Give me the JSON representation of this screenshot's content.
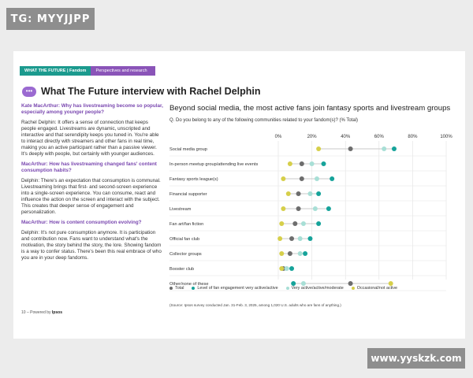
{
  "watermarks": {
    "top": "TG: MYYJJPP",
    "bottom": "www.yyskzk.com"
  },
  "breadcrumb": {
    "section": "WHAT THE FUTURE | Fandom",
    "subsection": "Perspectives and research"
  },
  "page_title": "What The Future interview with Rachel Delphin",
  "interview": [
    {
      "kind": "q",
      "text": "Kate MacArthur: Why has livestreaming become so popular, especially among younger people?"
    },
    {
      "kind": "a",
      "text": "Rachel Delphin: It offers a sense of connection that keeps people engaged. Livestreams are dynamic, unscripted and interactive and that serendipity keeps you tuned in. You're able to interact directly with streamers and other fans in real time, making you an active participant rather than a passive viewer. It's deeply with people, but certainly with younger audiences."
    },
    {
      "kind": "q",
      "text": "MacArthur: How has livestreaming changed fans' content consumption habits?"
    },
    {
      "kind": "a",
      "text": "Delphin: There's an expectation that consumption is communal. Livestreaming brings that first- and second-screen experience into a single-screen experience. You can consume, react and influence the action on the screen and interact with the subject. This creates that deeper sense of engagement and personalization."
    },
    {
      "kind": "q",
      "text": "MacArthur: How is content consumption evolving?"
    },
    {
      "kind": "a",
      "text": "Delphin: It's not pure consumption anymore. It is participation and contribution now. Fans want to understand what's the motivation, the story behind the story, the lore. Showing fandom is a way to confer status. There's been this real embrace of who you are in your deep fandoms."
    }
  ],
  "footer": {
    "page": "10",
    "powered": "Powered by",
    "brand": "Ipsos"
  },
  "chart_data": {
    "type": "scatter",
    "title": "Beyond social media, the most active fans join fantasy sports and livestream groups",
    "subtitle": "Q. Do you belong to any of the following communities related to your fandom(s)? (% Total)",
    "xlim": [
      0,
      100
    ],
    "xticks": [
      "0%",
      "20%",
      "40%",
      "60%",
      "80%",
      "100%"
    ],
    "categories": [
      "Social media group",
      "In-person meetup group/attending live events",
      "Fantasy sports league(s)",
      "Financial supporter",
      "Livestream",
      "Fan art/fan fiction",
      "Official fan club",
      "Collector groups",
      "Booster club",
      "Other/none of these"
    ],
    "series": [
      {
        "name": "Total",
        "color": "#6d6d6d",
        "values": [
          43,
          14,
          14,
          12,
          12,
          10,
          8,
          7,
          3,
          43
        ]
      },
      {
        "name": "Very active/active/moderate",
        "color": "#a8dfd6",
        "values": [
          63,
          20,
          23,
          19,
          22,
          15,
          13,
          13,
          5,
          15
        ]
      },
      {
        "name": "Level of fan engagement very active/active",
        "color": "#16a39a",
        "values": [
          69,
          27,
          32,
          24,
          30,
          24,
          19,
          16,
          8,
          9
        ]
      },
      {
        "name": "Occasional/not active",
        "color": "#d6cf4a",
        "values": [
          24,
          7,
          3,
          6,
          3,
          2,
          1,
          2,
          2,
          67
        ]
      }
    ],
    "legend_order": [
      0,
      2,
      1,
      3
    ],
    "grid": true,
    "legend_position": "bottom"
  },
  "source": "(Source: Ipsos survey conducted Jan. 31-Feb. 3, 2025, among 1,020 U.S. adults who are fans of anything.)"
}
